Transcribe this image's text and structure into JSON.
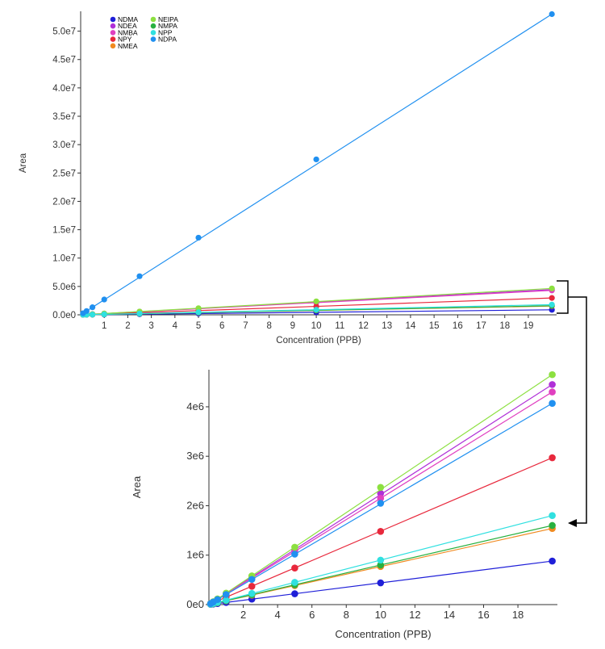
{
  "chart_data": [
    {
      "type": "scatter",
      "title": "",
      "xlabel": "Concentration (PPB)",
      "ylabel": "Area",
      "xlim": [
        0,
        20.2
      ],
      "ylim": [
        0,
        53500000
      ],
      "xticks": [
        1,
        2,
        3,
        4,
        5,
        6,
        7,
        8,
        9,
        10,
        11,
        12,
        13,
        14,
        15,
        16,
        17,
        18,
        19
      ],
      "xtick_labels": [
        "1",
        "2",
        "3",
        "4",
        "5",
        "6",
        "7",
        "8",
        "9",
        "10",
        "11",
        "12",
        "13",
        "14",
        "15",
        "16",
        "17",
        "18",
        "19"
      ],
      "yticks": [
        0,
        5000000,
        10000000,
        15000000,
        20000000,
        25000000,
        30000000,
        35000000,
        40000000,
        45000000,
        50000000
      ],
      "ytick_labels": [
        "0.0e0",
        "5.0e6",
        "1.0e7",
        "1.5e7",
        "2.0e7",
        "2.5e7",
        "3.0e7",
        "3.5e7",
        "4.0e7",
        "4.5e7",
        "5.0e7"
      ],
      "legend_position": "top-left",
      "legend": [
        "NDMA",
        "NDEA",
        "NMBA",
        "NPY",
        "NMEA",
        "NEIPA",
        "NMPA",
        "NPP",
        "NDPA"
      ],
      "x": [
        0.1,
        0.25,
        0.5,
        1,
        2.5,
        5,
        10,
        20
      ],
      "series": [
        {
          "name": "NDMA",
          "color": "#1f1fd8",
          "values": [
            4400,
            11000,
            22000,
            44000,
            110000,
            220000,
            440000,
            880000
          ]
        },
        {
          "name": "NDEA",
          "color": "#b030d8",
          "values": [
            22000,
            55000,
            110000,
            220000,
            550000,
            1100000,
            2250000,
            4450000
          ]
        },
        {
          "name": "NMBA",
          "color": "#e040c0",
          "values": [
            21000,
            53000,
            106000,
            212000,
            530000,
            1060000,
            2150000,
            4300000
          ]
        },
        {
          "name": "NPY",
          "color": "#e8283c",
          "values": [
            15000,
            37000,
            74000,
            148000,
            370000,
            740000,
            1480000,
            2970000
          ]
        },
        {
          "name": "NMEA",
          "color": "#f08a20",
          "values": [
            7700,
            19000,
            38000,
            77000,
            190000,
            385000,
            770000,
            1540000
          ]
        },
        {
          "name": "NEIPA",
          "color": "#8ce040",
          "values": [
            23000,
            58000,
            116000,
            232000,
            580000,
            1160000,
            2370000,
            4650000
          ]
        },
        {
          "name": "NMPA",
          "color": "#28b040",
          "values": [
            8000,
            20000,
            40000,
            80000,
            200000,
            400000,
            800000,
            1600000
          ]
        },
        {
          "name": "NPP",
          "color": "#30e0e0",
          "values": [
            9000,
            22500,
            45000,
            90000,
            225000,
            450000,
            900000,
            1800000
          ]
        },
        {
          "name": "NDPA",
          "color": "#2090f0",
          "values": [
            265000,
            665000,
            1330000,
            2700000,
            6800000,
            13600000,
            27400000,
            53000000
          ]
        }
      ]
    },
    {
      "type": "scatter",
      "title": "",
      "xlabel": "Concentration (PPB)",
      "ylabel": "Area",
      "xlim": [
        0,
        20.3
      ],
      "ylim": [
        0,
        4750000
      ],
      "xticks": [
        2,
        4,
        6,
        8,
        10,
        12,
        14,
        16,
        18
      ],
      "xtick_labels": [
        "2",
        "4",
        "6",
        "8",
        "10",
        "12",
        "14",
        "16",
        "18"
      ],
      "yticks": [
        0,
        1000000,
        2000000,
        3000000,
        4000000
      ],
      "ytick_labels": [
        "0e0",
        "1e6",
        "2e6",
        "3e6",
        "4e6"
      ],
      "x": [
        0.1,
        0.25,
        0.5,
        1,
        2.5,
        5,
        10,
        20
      ],
      "series": [
        {
          "color": "#1f1fd8",
          "values": [
            4400,
            11000,
            22000,
            44000,
            110000,
            220000,
            440000,
            880000
          ]
        },
        {
          "color": "#b030d8",
          "values": [
            22000,
            55000,
            110000,
            220000,
            550000,
            1100000,
            2250000,
            4450000
          ]
        },
        {
          "color": "#e040c0",
          "values": [
            21000,
            53000,
            106000,
            212000,
            530000,
            1060000,
            2150000,
            4300000
          ]
        },
        {
          "color": "#e8283c",
          "values": [
            15000,
            37000,
            74000,
            148000,
            370000,
            740000,
            1480000,
            2970000
          ]
        },
        {
          "color": "#f08a20",
          "values": [
            7700,
            19000,
            38000,
            77000,
            190000,
            385000,
            770000,
            1540000
          ]
        },
        {
          "color": "#8ce040",
          "values": [
            23000,
            58000,
            116000,
            232000,
            580000,
            1160000,
            2370000,
            4650000
          ]
        },
        {
          "color": "#28b040",
          "values": [
            8000,
            20000,
            40000,
            80000,
            200000,
            400000,
            800000,
            1600000
          ]
        },
        {
          "color": "#30e0e0",
          "values": [
            9000,
            22500,
            45000,
            90000,
            225000,
            450000,
            900000,
            1800000
          ]
        },
        {
          "color": "#2090f0",
          "values": [
            20500,
            51000,
            102000,
            204000,
            510000,
            1020000,
            2050000,
            4070000
          ]
        }
      ]
    }
  ]
}
